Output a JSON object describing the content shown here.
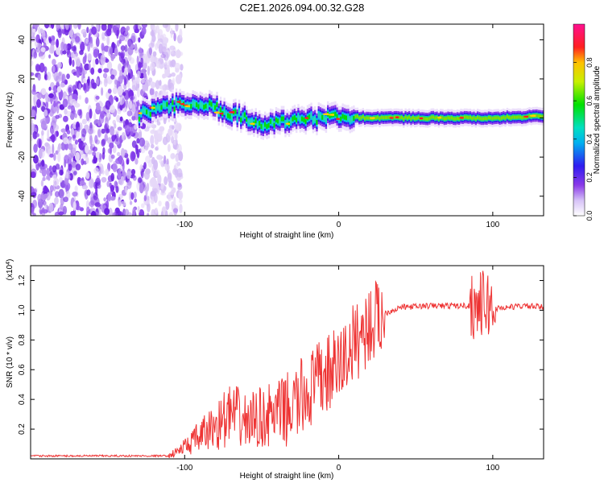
{
  "title": "C2E1.2026.094.00.32.G28",
  "chart_data": [
    {
      "type": "heatmap",
      "title": "C2E1.2026.094.00.32.G28",
      "xlabel": "Height of straight line (km)",
      "ylabel": "Frequency (Hz)",
      "xlim": [
        -200,
        133
      ],
      "ylim": [
        -50,
        48
      ],
      "x_ticks": [
        -100,
        0,
        100
      ],
      "x_tick_labels": [
        "-100",
        "0",
        "100"
      ],
      "y_ticks": [
        -40,
        -20,
        0,
        20,
        40
      ],
      "y_tick_labels": [
        "-40",
        "-20",
        "0",
        "20",
        "40"
      ],
      "colorbar": {
        "label": "Normalized spectral amplitude",
        "range": [
          0,
          1
        ],
        "ticks": [
          0.0,
          0.2,
          0.4,
          0.6,
          0.8
        ],
        "tick_labels": [
          "0.0",
          "0.2",
          "0.4",
          "0.6",
          "0.8"
        ],
        "colormap": "rainbow (white-violet-blue-cyan-green-yellow-red-magenta)"
      },
      "signal_centerline_hz": [
        {
          "x": -128,
          "y": 3
        },
        {
          "x": -110,
          "y": 6
        },
        {
          "x": -95,
          "y": 8
        },
        {
          "x": -80,
          "y": 5
        },
        {
          "x": -70,
          "y": 2
        },
        {
          "x": -60,
          "y": 0
        },
        {
          "x": -50,
          "y": -3
        },
        {
          "x": -40,
          "y": -2
        },
        {
          "x": -25,
          "y": -1
        },
        {
          "x": -10,
          "y": 0
        },
        {
          "x": 0,
          "y": 1
        },
        {
          "x": 20,
          "y": 0
        },
        {
          "x": 60,
          "y": 0
        },
        {
          "x": 100,
          "y": 0
        },
        {
          "x": 133,
          "y": 1
        }
      ],
      "noise_region_x": [
        -200,
        -110
      ]
    },
    {
      "type": "line",
      "xlabel": "Height of straight line (km)",
      "ylabel": "SNR (10 * v/v)",
      "y_multiplier_label": "(x10",
      "y_multiplier_exp": "4",
      "y_multiplier_close": ")",
      "xlim": [
        -200,
        133
      ],
      "ylim": [
        0,
        1.3
      ],
      "x_ticks": [
        -100,
        0,
        100
      ],
      "x_tick_labels": [
        "-100",
        "0",
        "100"
      ],
      "y_ticks": [
        0.2,
        0.4,
        0.6,
        0.8,
        1.0,
        1.2
      ],
      "y_tick_labels": [
        "0.2",
        "0.4",
        "0.6",
        "0.8",
        "1.0",
        "1.2"
      ],
      "series": [
        {
          "name": "SNR",
          "color": "#ee3333",
          "points": [
            {
              "x": -200,
              "y": 0.02
            },
            {
              "x": -150,
              "y": 0.02
            },
            {
              "x": -110,
              "y": 0.02
            },
            {
              "x": -100,
              "y": 0.08
            },
            {
              "x": -90,
              "y": 0.15
            },
            {
              "x": -80,
              "y": 0.22
            },
            {
              "x": -70,
              "y": 0.3
            },
            {
              "x": -60,
              "y": 0.25
            },
            {
              "x": -50,
              "y": 0.28
            },
            {
              "x": -40,
              "y": 0.3
            },
            {
              "x": -30,
              "y": 0.35
            },
            {
              "x": -20,
              "y": 0.45
            },
            {
              "x": -10,
              "y": 0.55
            },
            {
              "x": 0,
              "y": 0.62
            },
            {
              "x": 10,
              "y": 0.78
            },
            {
              "x": 20,
              "y": 0.9
            },
            {
              "x": 30,
              "y": 0.98
            },
            {
              "x": 40,
              "y": 1.02
            },
            {
              "x": 60,
              "y": 1.03
            },
            {
              "x": 80,
              "y": 1.03
            },
            {
              "x": 90,
              "y": 1.03
            },
            {
              "x": 95,
              "y": 1.05
            },
            {
              "x": 100,
              "y": 1.01
            },
            {
              "x": 110,
              "y": 1.02
            },
            {
              "x": 120,
              "y": 1.03
            },
            {
              "x": 133,
              "y": 1.02
            }
          ]
        }
      ]
    }
  ],
  "colors": {
    "snr_line": "#ee3333",
    "axis": "#000000",
    "background": "#ffffff"
  }
}
